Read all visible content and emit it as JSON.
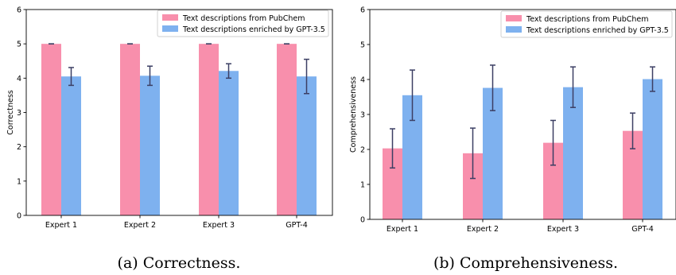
{
  "chart_data": [
    {
      "type": "bar",
      "categories": [
        "Expert 1",
        "Expert 2",
        "Expert 3",
        "GPT-4"
      ],
      "ylabel": "Correctness",
      "xlabel": "",
      "ylim": [
        0,
        6
      ],
      "yticks": [
        0,
        1,
        2,
        3,
        4,
        5,
        6
      ],
      "grid": false,
      "legend_position": "top-right",
      "caption": "(a) Correctness.",
      "series": [
        {
          "name": "Text descriptions from PubChem",
          "color": "#f88fac",
          "values": [
            5.0,
            5.0,
            5.0,
            5.0
          ],
          "errors": [
            0.0,
            0.0,
            0.0,
            0.0
          ]
        },
        {
          "name": "Text descriptions enriched by GPT-3.5",
          "color": "#7eb1ef",
          "values": [
            4.05,
            4.07,
            4.21,
            4.05
          ],
          "errors": [
            0.26,
            0.28,
            0.21,
            0.5
          ]
        }
      ]
    },
    {
      "type": "bar",
      "categories": [
        "Expert 1",
        "Expert 2",
        "Expert 3",
        "GPT-4"
      ],
      "ylabel": "Comprehensiveness",
      "xlabel": "",
      "ylim": [
        0,
        6
      ],
      "yticks": [
        0,
        1,
        2,
        3,
        4,
        5,
        6
      ],
      "grid": false,
      "legend_position": "top-right",
      "caption": "(b) Comprehensiveness.",
      "series": [
        {
          "name": "Text descriptions from PubChem",
          "color": "#f88fac",
          "values": [
            2.03,
            1.89,
            2.19,
            2.53
          ],
          "errors": [
            0.56,
            0.72,
            0.64,
            0.51
          ]
        },
        {
          "name": "Text descriptions enriched by GPT-3.5",
          "color": "#7eb1ef",
          "values": [
            3.55,
            3.76,
            3.78,
            4.01
          ],
          "errors": [
            0.72,
            0.65,
            0.58,
            0.35
          ]
        }
      ]
    }
  ]
}
